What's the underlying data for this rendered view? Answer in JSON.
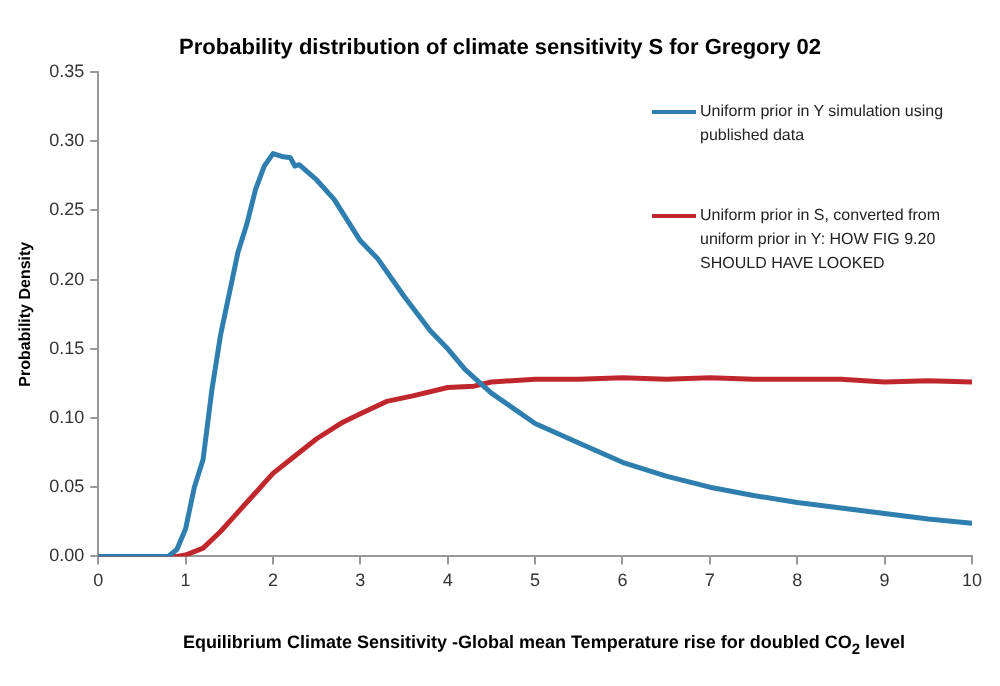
{
  "chart_data": {
    "type": "line",
    "title": "Probability distribution of climate sensitivity S for Gregory 02",
    "xlabel": "Equilibrium Climate Sensitivity -Global mean Temperature rise for doubled CO$_{2}$ level",
    "ylabel": "Probability Density",
    "xlim": [
      0,
      10
    ],
    "xticks": [
      0,
      1,
      2,
      3,
      4,
      5,
      6,
      7,
      8,
      9,
      10
    ],
    "ylim": [
      0,
      0.35
    ],
    "yticks": [
      {
        "value": 0,
        "label": "0.00"
      },
      {
        "value": 0.05,
        "label": "0.05"
      },
      {
        "value": 0.1,
        "label": "0.10"
      },
      {
        "value": 0.15,
        "label": "0.15"
      },
      {
        "value": 0.2,
        "label": "0.20"
      },
      {
        "value": 0.25,
        "label": "0.25"
      },
      {
        "value": 0.3,
        "label": "0.30"
      },
      {
        "value": 0.35,
        "label": "0.35"
      }
    ],
    "grid": false,
    "legend": "top right",
    "marker": "none",
    "line_style": "solid",
    "series": [
      {
        "name": "Uniform prior in Y simulation  using published data",
        "color": "#2e7fb0",
        "x": [
          0,
          0.5,
          0.8,
          0.9,
          1.0,
          1.1,
          1.2,
          1.3,
          1.4,
          1.5,
          1.6,
          1.7,
          1.8,
          1.9,
          2.0,
          2.1,
          2.2,
          2.25,
          2.3,
          2.5,
          2.7,
          3.0,
          3.2,
          3.5,
          3.8,
          4.0,
          4.2,
          4.5,
          5.0,
          5.5,
          6.0,
          6.5,
          7.0,
          7.5,
          8.0,
          8.5,
          9.0,
          9.5,
          10
        ],
        "values": [
          0,
          0,
          0,
          0.005,
          0.02,
          0.05,
          0.07,
          0.12,
          0.16,
          0.19,
          0.22,
          0.24,
          0.265,
          0.282,
          0.291,
          0.289,
          0.288,
          0.282,
          0.283,
          0.272,
          0.258,
          0.228,
          0.215,
          0.188,
          0.163,
          0.15,
          0.135,
          0.118,
          0.096,
          0.082,
          0.068,
          0.058,
          0.05,
          0.044,
          0.039,
          0.035,
          0.031,
          0.027,
          0.024
        ]
      },
      {
        "name": "Uniform prior in S, converted from uniform prior in Y: HOW FIG 9.20 SHOULD HAVE LOOKED",
        "color": "#c0272d",
        "x": [
          0,
          0.5,
          0.9,
          1.0,
          1.2,
          1.4,
          1.6,
          1.8,
          2.0,
          2.2,
          2.5,
          2.8,
          3.0,
          3.3,
          3.6,
          4.0,
          4.3,
          4.5,
          5.0,
          5.5,
          6.0,
          6.5,
          7.0,
          7.5,
          8.0,
          8.5,
          9.0,
          9.5,
          10
        ],
        "values": [
          0,
          0,
          0,
          0.001,
          0.006,
          0.018,
          0.032,
          0.046,
          0.06,
          0.07,
          0.085,
          0.097,
          0.103,
          0.112,
          0.116,
          0.122,
          0.123,
          0.126,
          0.128,
          0.128,
          0.129,
          0.128,
          0.129,
          0.128,
          0.128,
          0.128,
          0.126,
          0.127,
          0.126
        ]
      }
    ]
  }
}
